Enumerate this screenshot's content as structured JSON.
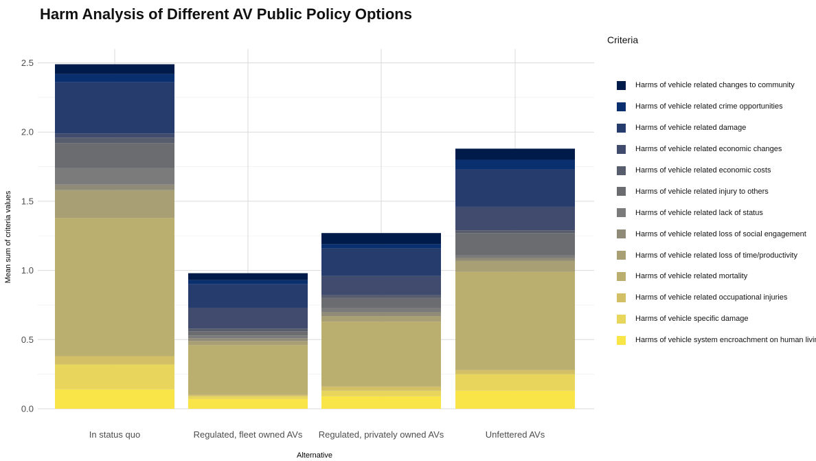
{
  "chart_data": {
    "type": "bar",
    "stacked": true,
    "title": "Harm Analysis of Different AV Public Policy Options",
    "xlabel": "Alternative",
    "ylabel": "Mean sum of criteria values",
    "ylim": [
      0,
      2.6
    ],
    "yticks": [
      "0.0",
      "0.5",
      "1.0",
      "1.5",
      "2.0",
      "2.5"
    ],
    "ytick_values": [
      0,
      0.5,
      1.0,
      1.5,
      2.0,
      2.5
    ],
    "grid": true,
    "legend_title": "Criteria",
    "legend_position": "right",
    "categories": [
      "In status quo",
      "Regulated, fleet owned AVs",
      "Regulated, privately owned AVs",
      "Unfettered AVs"
    ],
    "series": [
      {
        "name": "Harms of vehicle system encroachment on human living",
        "color": "#f9e547",
        "values": [
          0.14,
          0.07,
          0.09,
          0.13
        ]
      },
      {
        "name": "Harms of vehicle specific damage",
        "color": "#e8d55c",
        "values": [
          0.18,
          0.02,
          0.04,
          0.12
        ]
      },
      {
        "name": "Harms of vehicle related occupational injuries",
        "color": "#d3c066",
        "values": [
          0.06,
          0.01,
          0.03,
          0.03
        ]
      },
      {
        "name": "Harms of vehicle related mortality",
        "color": "#bbaf6f",
        "values": [
          1.0,
          0.36,
          0.47,
          0.71
        ]
      },
      {
        "name": "Harms of vehicle related loss of time/productivity",
        "color": "#a89f74",
        "values": [
          0.2,
          0.03,
          0.04,
          0.08
        ]
      },
      {
        "name": "Harms of vehicle related loss of social engagement",
        "color": "#8f8b78",
        "values": [
          0.04,
          0.02,
          0.03,
          0.02
        ]
      },
      {
        "name": "Harms of vehicle related lack of status",
        "color": "#7a7b7a",
        "values": [
          0.12,
          0.02,
          0.03,
          0.02
        ]
      },
      {
        "name": "Harms of vehicle related injury to others",
        "color": "#6a6c70",
        "values": [
          0.18,
          0.03,
          0.07,
          0.16
        ]
      },
      {
        "name": "Harms of vehicle related economic costs",
        "color": "#575d6d",
        "values": [
          0.04,
          0.02,
          0.02,
          0.02
        ]
      },
      {
        "name": "Harms of vehicle related economic changes",
        "color": "#404b6e",
        "values": [
          0.03,
          0.15,
          0.14,
          0.17
        ]
      },
      {
        "name": "Harms of vehicle related damage",
        "color": "#253c6d",
        "values": [
          0.37,
          0.17,
          0.2,
          0.27
        ]
      },
      {
        "name": "Harms of vehicle related crime opportunities",
        "color": "#0a2f6e",
        "values": [
          0.06,
          0.03,
          0.03,
          0.07
        ]
      },
      {
        "name": "Harms of vehicle related changes to community",
        "color": "#001a4a",
        "values": [
          0.07,
          0.05,
          0.08,
          0.08
        ]
      }
    ]
  }
}
